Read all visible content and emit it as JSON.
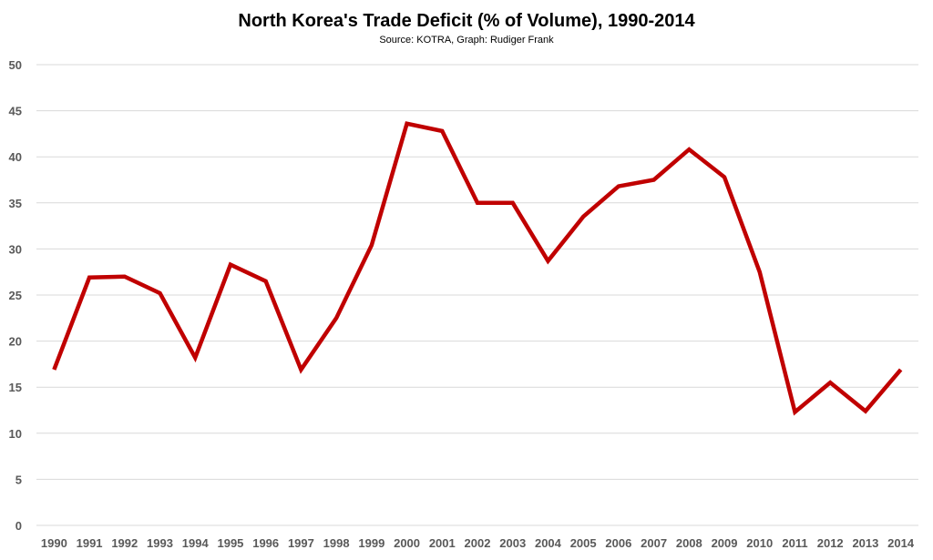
{
  "chart_data": {
    "type": "line",
    "title": "North Korea's Trade Deficit (% of Volume), 1990-2014",
    "subtitle": "Source: KOTRA, Graph: Rudiger Frank",
    "xlabel": "",
    "ylabel": "",
    "ylim": [
      0,
      50
    ],
    "yticks": [
      0,
      5,
      10,
      15,
      20,
      25,
      30,
      35,
      40,
      45,
      50
    ],
    "grid": true,
    "legend": "none",
    "categories": [
      "1990",
      "1991",
      "1992",
      "1993",
      "1994",
      "1995",
      "1996",
      "1997",
      "1998",
      "1999",
      "2000",
      "2001",
      "2002",
      "2003",
      "2004",
      "2005",
      "2006",
      "2007",
      "2008",
      "2009",
      "2010",
      "2011",
      "2012",
      "2013",
      "2014"
    ],
    "series": [
      {
        "color": "#C00000",
        "values": [
          16.9,
          26.9,
          27.0,
          25.2,
          18.2,
          28.3,
          26.5,
          16.9,
          22.5,
          30.4,
          43.6,
          42.8,
          35.0,
          35.0,
          28.7,
          33.5,
          36.8,
          37.5,
          40.8,
          37.8,
          27.5,
          12.3,
          15.5,
          12.4,
          16.9
        ]
      }
    ]
  }
}
